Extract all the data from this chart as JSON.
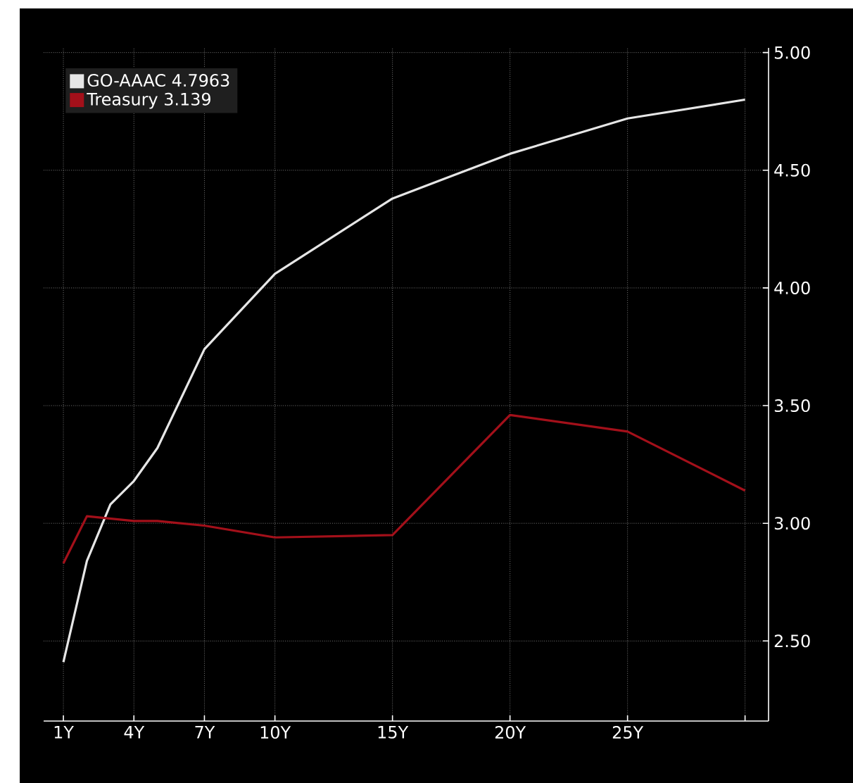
{
  "chart_data": {
    "type": "line",
    "x": [
      1,
      2,
      3,
      4,
      5,
      7,
      10,
      15,
      20,
      25,
      30
    ],
    "series": [
      {
        "name": "GO-AAAC 4.7963",
        "color": "#e6e6e6",
        "values": [
          2.41,
          2.84,
          3.08,
          3.18,
          3.32,
          3.74,
          4.06,
          4.38,
          4.57,
          4.72,
          4.8
        ]
      },
      {
        "name": "Treasury 3.139",
        "color": "#a3101a",
        "values": [
          2.83,
          3.03,
          3.02,
          3.01,
          3.01,
          2.99,
          2.94,
          2.95,
          3.46,
          3.39,
          3.139
        ]
      }
    ],
    "xlim": [
      0.16,
      31
    ],
    "ylim": [
      2.16,
      5.02
    ],
    "xticks": [
      {
        "value": 1,
        "label": "1Y"
      },
      {
        "value": 4,
        "label": "4Y"
      },
      {
        "value": 7,
        "label": "7Y"
      },
      {
        "value": 10,
        "label": "10Y"
      },
      {
        "value": 15,
        "label": "15Y"
      },
      {
        "value": 20,
        "label": "20Y"
      },
      {
        "value": 25,
        "label": "25Y"
      },
      {
        "value": 30,
        "label": null
      }
    ],
    "yticks": [
      {
        "value": 2.5,
        "label": "2.50"
      },
      {
        "value": 3.0,
        "label": "3.00"
      },
      {
        "value": 3.5,
        "label": "3.50"
      },
      {
        "value": 4.0,
        "label": "4.00"
      },
      {
        "value": 4.5,
        "label": "4.50"
      },
      {
        "value": 5.0,
        "label": "5.00"
      }
    ],
    "grid": true,
    "legend": "top left",
    "line_style": "solid"
  }
}
